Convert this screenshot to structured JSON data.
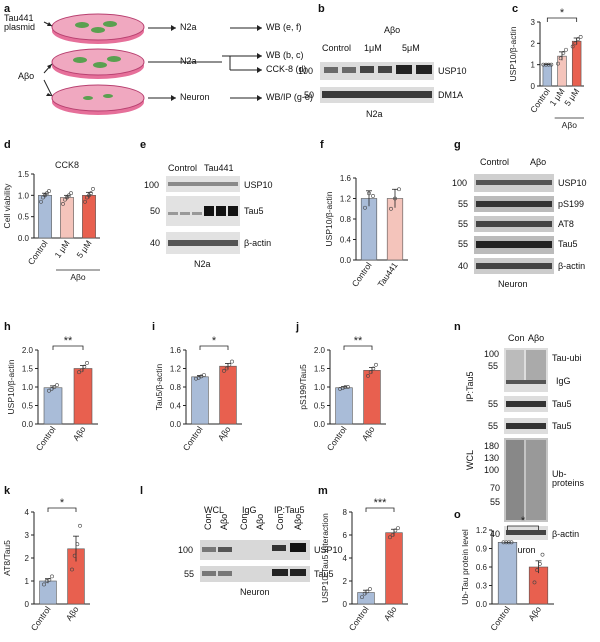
{
  "figure": {
    "panel_letters": [
      "a",
      "b",
      "c",
      "d",
      "e",
      "f",
      "g",
      "h",
      "i",
      "j",
      "k",
      "l",
      "m",
      "n",
      "o"
    ]
  },
  "panel_a": {
    "input_left": "Tau441 plasmid",
    "input_abo": "Aβo",
    "cell1": "N2a",
    "out1": "WB (e, f)",
    "cell2": "N2a",
    "out2a": "WB (b, c)",
    "out2b": "CCK-8 (d)",
    "cell3": "Neuron",
    "out3": "WB/IP (g-o)"
  },
  "panel_b": {
    "lanes": [
      "Control",
      "1μM",
      "5μM"
    ],
    "treat": "Aβo",
    "markers": [
      "100",
      "50"
    ],
    "bands": [
      "USP10",
      "DM1A"
    ],
    "cell": "N2a"
  },
  "panel_e": {
    "lanes": [
      "Control",
      "Tau441"
    ],
    "markers": [
      "100",
      "50",
      "40"
    ],
    "bands": [
      "USP10",
      "Tau5",
      "β-actin"
    ],
    "cell": "N2a"
  },
  "panel_g": {
    "lanes": [
      "Control",
      "Aβo"
    ],
    "markers": [
      "100",
      "55",
      "55",
      "55",
      "40"
    ],
    "bands": [
      "USP10",
      "pS199",
      "AT8",
      "Tau5",
      "β-actin"
    ],
    "cell": "Neuron"
  },
  "panel_l": {
    "groups": [
      "WCL",
      "IgG",
      "IP:Tau5"
    ],
    "sub": [
      "Con",
      "Aβo",
      "Con",
      "Aβo",
      "Con",
      "Aβo"
    ],
    "markers": [
      "100",
      "55"
    ],
    "bands": [
      "USP10",
      "Tau5"
    ],
    "cell": "Neuron"
  },
  "panel_n": {
    "lanes": [
      "Con",
      "Aβo"
    ],
    "ip": "IP:Tau5",
    "wcl": "WCL",
    "markers_ip": [
      "100",
      "55",
      "55"
    ],
    "markers_wcl": [
      "55",
      "180",
      "130",
      "100",
      "70",
      "55",
      "40"
    ],
    "bands": [
      "Tau-ubi",
      "IgG",
      "Tau5",
      "Tau5",
      "Ub-proteins",
      "β-actin"
    ],
    "cell": "Neuron"
  },
  "chart_data": [
    {
      "panel": "c",
      "type": "bar",
      "categories": [
        "Control",
        "1 μM",
        "5 μM"
      ],
      "group_label": "Aβo",
      "values": [
        1.0,
        1.4,
        2.1
      ],
      "errors": [
        0.02,
        0.2,
        0.15
      ],
      "points": [
        [
          1.0,
          1.0,
          1.0,
          1.0
        ],
        [
          1.05,
          1.3,
          1.55,
          1.7
        ],
        [
          1.85,
          2.0,
          2.2,
          2.3
        ]
      ],
      "ylabel": "USP10/β-actin",
      "ylim": [
        0,
        3
      ],
      "yticks": [
        "0",
        "1",
        "2",
        "3"
      ],
      "significance": [
        {
          "from": 0,
          "to": 2,
          "label": "*"
        }
      ],
      "colors": [
        "#a9bcd8",
        "#f4c4bb",
        "#e8604f"
      ]
    },
    {
      "panel": "d",
      "type": "bar",
      "title": "CCK8",
      "categories": [
        "Control",
        "1 μM",
        "5 μM"
      ],
      "group_label": "Aβo",
      "values": [
        1.0,
        0.95,
        1.0
      ],
      "errors": [
        0.05,
        0.05,
        0.07
      ],
      "points": [
        [
          0.85,
          0.95,
          1.0,
          1.05,
          1.1
        ],
        [
          0.8,
          0.9,
          0.95,
          1.0,
          1.05
        ],
        [
          0.85,
          0.95,
          1.0,
          1.05,
          1.15
        ]
      ],
      "ylabel": "Cell viability",
      "ylim": [
        0,
        1.5
      ],
      "yticks": [
        "0.0",
        "0.5",
        "1.0",
        "1.5"
      ],
      "significance": [],
      "colors": [
        "#a9bcd8",
        "#f4c4bb",
        "#e8604f"
      ]
    },
    {
      "panel": "f",
      "type": "bar",
      "categories": [
        "Control",
        "Tau441"
      ],
      "values": [
        1.2,
        1.2
      ],
      "errors": [
        0.15,
        0.18
      ],
      "points": [
        [
          1.02,
          1.3,
          1.25
        ],
        [
          1.0,
          1.2,
          1.38
        ]
      ],
      "ylabel": "USP10/β-actin",
      "ylim": [
        0,
        1.6
      ],
      "yticks": [
        "0.0",
        "0.4",
        "0.8",
        "1.2",
        "1.6"
      ],
      "significance": [],
      "colors": [
        "#a9bcd8",
        "#f4c4bb"
      ]
    },
    {
      "panel": "h",
      "type": "bar",
      "categories": [
        "Control",
        "Aβo"
      ],
      "values": [
        0.98,
        1.5
      ],
      "errors": [
        0.05,
        0.08
      ],
      "points": [
        [
          0.9,
          0.95,
          1.0,
          1.05
        ],
        [
          1.4,
          1.45,
          1.55,
          1.65
        ]
      ],
      "ylabel": "USP10/β-actin",
      "ylim": [
        0,
        2.0
      ],
      "yticks": [
        "0.0",
        "0.5",
        "1.0",
        "1.5",
        "2.0"
      ],
      "significance": [
        {
          "from": 0,
          "to": 1,
          "label": "**"
        }
      ],
      "colors": [
        "#a9bcd8",
        "#e8604f"
      ]
    },
    {
      "panel": "i",
      "type": "bar",
      "categories": [
        "Control",
        "Aβo"
      ],
      "values": [
        1.02,
        1.25
      ],
      "errors": [
        0.03,
        0.06
      ],
      "points": [
        [
          0.98,
          1.0,
          1.03,
          1.06
        ],
        [
          1.15,
          1.2,
          1.28,
          1.35
        ]
      ],
      "ylabel": "Tau5/β-actin",
      "ylim": [
        0,
        1.6
      ],
      "yticks": [
        "0.0",
        "0.4",
        "0.8",
        "1.2",
        "1.6"
      ],
      "significance": [
        {
          "from": 0,
          "to": 1,
          "label": "*"
        }
      ],
      "colors": [
        "#a9bcd8",
        "#e8604f"
      ]
    },
    {
      "panel": "j",
      "type": "bar",
      "categories": [
        "Control",
        "Aβo"
      ],
      "values": [
        0.98,
        1.45
      ],
      "errors": [
        0.03,
        0.08
      ],
      "points": [
        [
          0.95,
          0.97,
          1.0,
          1.0
        ],
        [
          1.3,
          1.4,
          1.5,
          1.6
        ]
      ],
      "ylabel": "pS199/Tau5",
      "ylim": [
        0,
        2.0
      ],
      "yticks": [
        "0.0",
        "0.5",
        "1.0",
        "1.5",
        "2.0"
      ],
      "significance": [
        {
          "from": 0,
          "to": 1,
          "label": "**"
        }
      ],
      "colors": [
        "#a9bcd8",
        "#e8604f"
      ]
    },
    {
      "panel": "k",
      "type": "bar",
      "categories": [
        "Control",
        "Aβo"
      ],
      "values": [
        1.0,
        2.4
      ],
      "errors": [
        0.1,
        0.55
      ],
      "points": [
        [
          0.85,
          1.0,
          1.05,
          1.2
        ],
        [
          1.5,
          2.1,
          2.6,
          3.4
        ]
      ],
      "ylabel": "AT8/Tau5",
      "ylim": [
        0,
        4
      ],
      "yticks": [
        "0",
        "1",
        "2",
        "3",
        "4"
      ],
      "significance": [
        {
          "from": 0,
          "to": 1,
          "label": "*"
        }
      ],
      "colors": [
        "#a9bcd8",
        "#e8604f"
      ]
    },
    {
      "panel": "m",
      "type": "bar",
      "categories": [
        "Control",
        "Aβo"
      ],
      "values": [
        1.0,
        6.2
      ],
      "errors": [
        0.2,
        0.3
      ],
      "points": [
        [
          0.6,
          0.9,
          1.1,
          1.3
        ],
        [
          5.8,
          6.0,
          6.4,
          6.6
        ]
      ],
      "ylabel": "USP10-Tau5 interaction",
      "ylim": [
        0,
        8
      ],
      "yticks": [
        "0",
        "2",
        "4",
        "6",
        "8"
      ],
      "significance": [
        {
          "from": 0,
          "to": 1,
          "label": "***"
        }
      ],
      "colors": [
        "#a9bcd8",
        "#e8604f"
      ]
    },
    {
      "panel": "o",
      "type": "bar",
      "categories": [
        "Control",
        "Aβo"
      ],
      "values": [
        1.0,
        0.6
      ],
      "errors": [
        0.0,
        0.1
      ],
      "points": [
        [
          1.0,
          1.0,
          1.0,
          1.0
        ],
        [
          0.35,
          0.55,
          0.65,
          0.8
        ]
      ],
      "ylabel": "Ub-Tau protein level",
      "ylim": [
        0,
        1.2
      ],
      "yticks": [
        "0.0",
        "0.3",
        "0.6",
        "0.9",
        "1.2"
      ],
      "significance": [
        {
          "from": 0,
          "to": 1,
          "label": "*"
        }
      ],
      "colors": [
        "#a9bcd8",
        "#e8604f"
      ]
    }
  ]
}
